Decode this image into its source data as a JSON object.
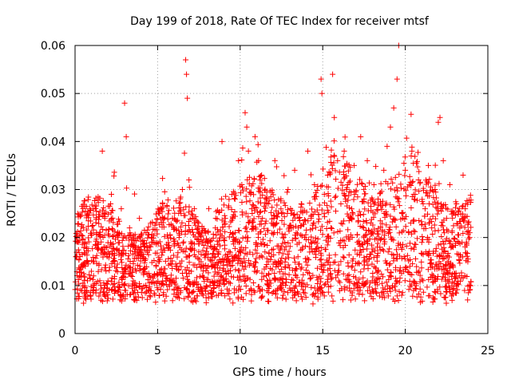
{
  "chart_data": {
    "type": "scatter",
    "title": "Day 199 of 2018, Rate Of TEC Index for receiver mtsf",
    "xlabel": "GPS time / hours",
    "ylabel": "ROTI / TECUs",
    "xlim": [
      0,
      25
    ],
    "ylim": [
      0,
      0.06
    ],
    "x_ticks": [
      0,
      5,
      10,
      15,
      20,
      25
    ],
    "x_tick_labels": [
      "0",
      "5",
      "10",
      "15",
      "20",
      "25"
    ],
    "y_ticks": [
      0,
      0.01,
      0.02,
      0.03,
      0.04,
      0.05,
      0.06
    ],
    "y_tick_labels": [
      "0",
      "0.01",
      "0.02",
      "0.03",
      "0.04",
      "0.05",
      "0.06"
    ],
    "grid": true,
    "marker": "+",
    "marker_color": "#ff0000",
    "series": [
      {
        "name": "ROTI",
        "x": [
          0.05,
          0.2,
          0.35,
          0.5,
          0.7,
          0.9,
          1.1,
          1.3,
          1.5,
          1.65,
          1.8,
          2.0,
          2.2,
          2.4,
          2.6,
          2.8,
          3.0,
          3.1,
          3.3,
          3.5,
          3.7,
          3.9,
          4.1,
          4.3,
          4.5,
          4.7,
          4.9,
          5.1,
          5.3,
          5.5,
          5.7,
          5.9,
          6.1,
          6.3,
          6.5,
          6.7,
          6.75,
          6.8,
          6.9,
          7.1,
          7.3,
          7.5,
          7.7,
          7.9,
          8.1,
          8.3,
          8.5,
          8.7,
          8.9,
          9.1,
          9.3,
          9.5,
          9.7,
          9.9,
          10.1,
          10.3,
          10.4,
          10.5,
          10.7,
          10.9,
          11.1,
          11.3,
          11.5,
          11.7,
          11.9,
          12.1,
          12.3,
          12.5,
          12.7,
          12.9,
          13.1,
          13.3,
          13.5,
          13.7,
          13.9,
          14.1,
          14.3,
          14.5,
          14.7,
          14.9,
          14.95,
          15.1,
          15.3,
          15.5,
          15.6,
          15.7,
          15.9,
          16.1,
          16.3,
          16.5,
          16.7,
          16.9,
          17.1,
          17.3,
          17.5,
          17.7,
          17.9,
          18.1,
          18.3,
          18.5,
          18.7,
          18.9,
          19.1,
          19.3,
          19.5,
          19.6,
          19.8,
          20.0,
          20.2,
          20.4,
          20.6,
          20.8,
          21.0,
          21.2,
          21.4,
          21.6,
          21.8,
          22.0,
          22.1,
          22.3,
          22.5,
          22.7,
          22.9,
          23.1,
          23.3,
          23.5,
          23.7,
          23.9
        ],
        "y": [
          0.016,
          0.019,
          0.012,
          0.022,
          0.018,
          0.026,
          0.015,
          0.021,
          0.011,
          0.038,
          0.024,
          0.017,
          0.029,
          0.014,
          0.02,
          0.026,
          0.048,
          0.041,
          0.022,
          0.018,
          0.013,
          0.024,
          0.016,
          0.021,
          0.012,
          0.019,
          0.023,
          0.015,
          0.027,
          0.011,
          0.018,
          0.024,
          0.014,
          0.02,
          0.03,
          0.057,
          0.054,
          0.049,
          0.032,
          0.024,
          0.016,
          0.021,
          0.012,
          0.019,
          0.026,
          0.014,
          0.022,
          0.017,
          0.04,
          0.024,
          0.015,
          0.029,
          0.021,
          0.036,
          0.031,
          0.046,
          0.043,
          0.038,
          0.026,
          0.041,
          0.02,
          0.033,
          0.017,
          0.027,
          0.023,
          0.036,
          0.014,
          0.025,
          0.019,
          0.03,
          0.022,
          0.034,
          0.016,
          0.027,
          0.02,
          0.038,
          0.024,
          0.031,
          0.018,
          0.053,
          0.05,
          0.029,
          0.033,
          0.022,
          0.054,
          0.045,
          0.036,
          0.027,
          0.038,
          0.031,
          0.024,
          0.035,
          0.019,
          0.041,
          0.028,
          0.036,
          0.023,
          0.031,
          0.018,
          0.027,
          0.034,
          0.039,
          0.043,
          0.047,
          0.053,
          0.06,
          0.025,
          0.034,
          0.021,
          0.038,
          0.029,
          0.032,
          0.019,
          0.026,
          0.035,
          0.022,
          0.03,
          0.044,
          0.045,
          0.036,
          0.024,
          0.031,
          0.018,
          0.027,
          0.022,
          0.033,
          0.019,
          0.021
        ]
      }
    ],
    "series_note": "Representative sample of the plotted values (upper envelope points); the dense bulk of points between roughly 0.005 and 0.03 TECU is rendered procedurally."
  }
}
